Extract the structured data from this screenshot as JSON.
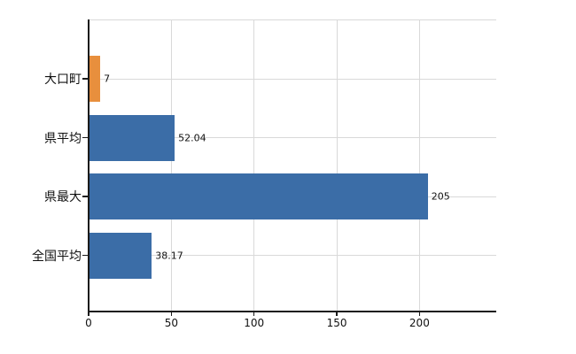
{
  "chart_data": {
    "type": "bar",
    "orientation": "horizontal",
    "title": "",
    "xlabel": "",
    "ylabel": "",
    "categories": [
      "大口町",
      "県平均",
      "県最大",
      "全国平均"
    ],
    "values": [
      7,
      52.04,
      205,
      38.17
    ],
    "value_labels": [
      "7",
      "52.04",
      "205",
      "38.17"
    ],
    "bar_colors": [
      "#e88f3d",
      "#3b6da7",
      "#3b6da7",
      "#3b6da7"
    ],
    "x_tick_values": [
      0,
      50,
      100,
      150,
      200
    ],
    "x_tick_labels": [
      "0",
      "50",
      "100",
      "150",
      "200"
    ],
    "xlim": [
      0,
      246.4
    ],
    "grid": true,
    "legend_position": "none"
  },
  "colors": {
    "bar_blue": "#3b6da7",
    "bar_orange": "#e88f3d",
    "axis": "#1a1a1a",
    "gridline": "#d9d9d9",
    "background": "#ffffff",
    "text": "#111111"
  }
}
